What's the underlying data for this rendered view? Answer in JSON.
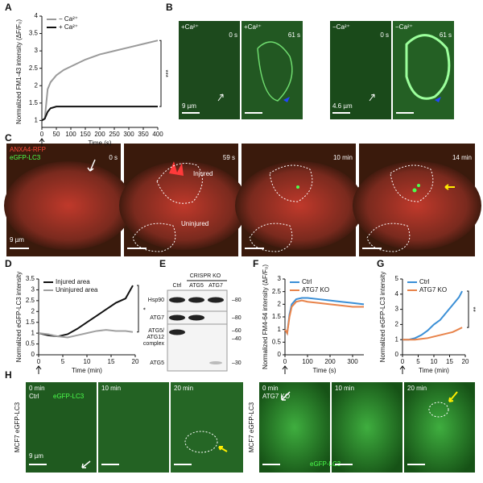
{
  "panel_letters": [
    "A",
    "B",
    "C",
    "D",
    "E",
    "F",
    "G",
    "H"
  ],
  "chart_data": [
    {
      "type": "line",
      "xlabel": "Time (s)",
      "ylabel": "Normalized FM1-43 intensity (ΔF/F₀)",
      "x": [
        0,
        10,
        20,
        30,
        50,
        75,
        100,
        150,
        200,
        250,
        300,
        350,
        400
      ],
      "series": [
        {
          "name": "− Ca²⁺",
          "color": "#9a9a9a",
          "values": [
            1,
            1.05,
            1.9,
            2.1,
            2.3,
            2.45,
            2.55,
            2.75,
            2.9,
            3.0,
            3.1,
            3.2,
            3.3
          ]
        },
        {
          "name": "+ Ca²⁺",
          "color": "#111111",
          "values": [
            1,
            1.05,
            1.25,
            1.35,
            1.4,
            1.4,
            1.4,
            1.4,
            1.4,
            1.4,
            1.4,
            1.4,
            1.4
          ]
        }
      ],
      "xlim": [
        0,
        400
      ],
      "xticks": [
        0,
        50,
        100,
        150,
        200,
        250,
        300,
        350,
        400
      ],
      "ylim": [
        0.8,
        4
      ],
      "yticks": [
        1,
        1.5,
        2,
        2.5,
        3,
        3.5,
        4
      ],
      "legend": "upper left",
      "annotation": "***"
    },
    {
      "type": "line",
      "xlabel": "Time (min)",
      "ylabel": "Normalized eGFP-LC3 intensity",
      "x": [
        0,
        2,
        4,
        6,
        8,
        10,
        12,
        14,
        16,
        18,
        19.5
      ],
      "series": [
        {
          "name": "Injured area",
          "color": "#111111",
          "values": [
            1,
            0.9,
            0.85,
            0.95,
            1.2,
            1.5,
            1.8,
            2.1,
            2.4,
            2.6,
            3.2
          ]
        },
        {
          "name": "Uninjured area",
          "color": "#a0a0a0",
          "values": [
            1,
            0.95,
            0.85,
            0.8,
            0.9,
            1,
            1.1,
            1.15,
            1.1,
            1.1,
            1.05
          ]
        }
      ],
      "xlim": [
        0,
        20
      ],
      "xticks": [
        0,
        5,
        10,
        15,
        20
      ],
      "ylim": [
        0,
        3.5
      ],
      "yticks": [
        0,
        0.5,
        1,
        1.5,
        2,
        2.5,
        3,
        3.5
      ],
      "legend": "upper left",
      "annotation": "*"
    },
    {
      "type": "line",
      "xlabel": "Time (s)",
      "ylabel": "Normalized FM4-64 intensity (ΔF/F₀)",
      "x": [
        0,
        10,
        20,
        30,
        50,
        75,
        100,
        150,
        200,
        250,
        300,
        350
      ],
      "series": [
        {
          "name": "Ctrl",
          "color": "#3b8fd6",
          "values": [
            1,
            0.85,
            1.6,
            2.0,
            2.2,
            2.25,
            2.25,
            2.2,
            2.15,
            2.1,
            2.05,
            2.0
          ]
        },
        {
          "name": "ATG7 KO",
          "color": "#e8834a",
          "values": [
            1,
            0.85,
            1.5,
            1.9,
            2.1,
            2.15,
            2.1,
            2.05,
            2.0,
            1.95,
            1.9,
            1.9
          ]
        }
      ],
      "xlim": [
        0,
        350
      ],
      "xticks": [
        0,
        100,
        200,
        300
      ],
      "ylim": [
        0,
        3
      ],
      "yticks": [
        0,
        0.5,
        1,
        1.5,
        2,
        2.5,
        3
      ],
      "legend": "upper left"
    },
    {
      "type": "line",
      "xlabel": "Time (min)",
      "ylabel": "Normalized eGFP-LC3 intensity",
      "x": [
        0,
        2,
        4,
        6,
        8,
        10,
        12,
        14,
        16,
        18,
        19
      ],
      "series": [
        {
          "name": "Ctrl",
          "color": "#3b8fd6",
          "values": [
            1,
            1,
            1.1,
            1.3,
            1.6,
            2,
            2.3,
            2.8,
            3.3,
            3.8,
            4.2
          ]
        },
        {
          "name": "ATG7 KO",
          "color": "#e8834a",
          "values": [
            1,
            1,
            1,
            1.05,
            1.1,
            1.2,
            1.3,
            1.4,
            1.5,
            1.7,
            1.8
          ]
        }
      ],
      "xlim": [
        0,
        20
      ],
      "xticks": [
        0,
        5,
        10,
        15,
        20
      ],
      "ylim": [
        0,
        5
      ],
      "yticks": [
        0,
        1,
        2,
        3,
        4,
        5
      ],
      "legend": "upper left",
      "annotation": "**"
    }
  ],
  "panel_B": {
    "frames": [
      {
        "condition": "+Ca²⁺",
        "time": "0 s"
      },
      {
        "condition": "+Ca²⁺",
        "time": "61 s"
      },
      {
        "condition": "−Ca²⁺",
        "time": "0 s"
      },
      {
        "condition": "−Ca²⁺",
        "time": "61 s"
      }
    ],
    "scale_bars": [
      "9 µm",
      "4.6 µm"
    ]
  },
  "panel_C": {
    "channels": [
      "ANXA4-RFP",
      "eGFP-LC3"
    ],
    "times": [
      "0 s",
      "59 s",
      "10 min",
      "14 min"
    ],
    "regions": [
      "Injured",
      "Uninjured"
    ],
    "scale_bar": "9 µm"
  },
  "panel_E": {
    "header": "CRISPR KO",
    "lanes": [
      "Ctrl",
      "ATG5",
      "ATG7"
    ],
    "rows": [
      "Hsp90",
      "ATG7",
      "ATG5/",
      "ATG12",
      "complex",
      "ATG5"
    ],
    "markers": [
      "80",
      "80",
      "60",
      "40",
      "30"
    ]
  },
  "panel_H": {
    "row_label": "MCF7 eGFP-LC3",
    "times": [
      "0 min",
      "10 min",
      "20 min"
    ],
    "groups": [
      "Ctrl",
      "ATG7 KO"
    ],
    "channel": "eGFP-LC3",
    "scale_bar": "9 µm"
  }
}
